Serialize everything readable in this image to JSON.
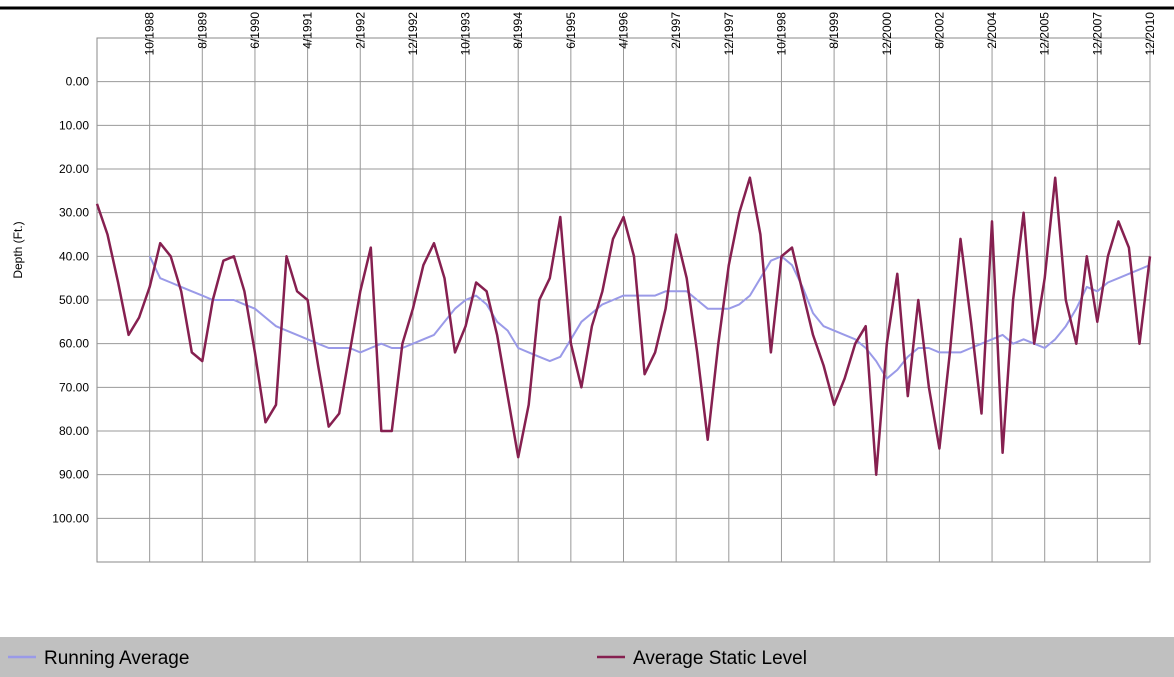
{
  "chart_data": {
    "type": "line",
    "y_label": "Depth (Ft.)",
    "categories": [
      null,
      null,
      null,
      null,
      null,
      "10/1988",
      null,
      null,
      null,
      null,
      "8/1989",
      null,
      null,
      null,
      null,
      "6/1990",
      null,
      null,
      null,
      null,
      "4/1991",
      null,
      null,
      null,
      null,
      "2/1992",
      null,
      null,
      null,
      null,
      "12/1992",
      null,
      null,
      null,
      null,
      "10/1993",
      null,
      null,
      null,
      null,
      "8/1994",
      null,
      null,
      null,
      null,
      "6/1995",
      null,
      null,
      null,
      null,
      "4/1996",
      null,
      null,
      null,
      null,
      "2/1997",
      null,
      null,
      null,
      null,
      "12/1997",
      null,
      null,
      null,
      null,
      "10/1998",
      null,
      null,
      null,
      null,
      "8/1999",
      null,
      null,
      null,
      null,
      "12/2000",
      null,
      null,
      null,
      null,
      "8/2002",
      null,
      null,
      null,
      null,
      "2/2004",
      null,
      null,
      null,
      null,
      "12/2005",
      null,
      null,
      null,
      null,
      "12/2007",
      null,
      null,
      null,
      null,
      "12/2010"
    ],
    "series": [
      {
        "name": "Running Average",
        "color": "#9a9ae8",
        "values": [
          null,
          null,
          null,
          null,
          null,
          40,
          45,
          46,
          47,
          48,
          49,
          50,
          50,
          50,
          51,
          52,
          54,
          56,
          57,
          58,
          59,
          60,
          61,
          61,
          61,
          62,
          61,
          60,
          61,
          61,
          60,
          59,
          58,
          55,
          52,
          50,
          49,
          51,
          55,
          57,
          61,
          62,
          63,
          64,
          63,
          59,
          55,
          53,
          51,
          50,
          49,
          49,
          49,
          49,
          48,
          48,
          48,
          50,
          52,
          52,
          52,
          51,
          49,
          45,
          41,
          40,
          42,
          47,
          53,
          56,
          57,
          58,
          59,
          61,
          64,
          68,
          66,
          63,
          61,
          61,
          62,
          62,
          62,
          61,
          60,
          59,
          58,
          60,
          59,
          60,
          61,
          59,
          56,
          52,
          47,
          48,
          46,
          45,
          44,
          43,
          42
        ]
      },
      {
        "name": "Average Static Level",
        "color": "#862050",
        "values": [
          28,
          35,
          46,
          58,
          54,
          47,
          37,
          40,
          48,
          62,
          64,
          50,
          41,
          40,
          48,
          62,
          78,
          74,
          40,
          48,
          50,
          65,
          79,
          76,
          62,
          48,
          38,
          80,
          80,
          60,
          52,
          42,
          37,
          45,
          62,
          56,
          46,
          48,
          58,
          72,
          86,
          74,
          50,
          45,
          31,
          60,
          70,
          56,
          48,
          36,
          31,
          40,
          67,
          62,
          52,
          35,
          45,
          62,
          82,
          60,
          42,
          30,
          22,
          35,
          62,
          40,
          38,
          48,
          58,
          65,
          74,
          68,
          60,
          56,
          90,
          60,
          44,
          72,
          50,
          70,
          84,
          62,
          36,
          55,
          76,
          32,
          85,
          50,
          30,
          60,
          45,
          22,
          50,
          60,
          40,
          55,
          40,
          32,
          38,
          60,
          40
        ]
      }
    ],
    "ylim": [
      -10,
      110
    ],
    "y_inverted": true,
    "yticks": [
      {
        "value": 0,
        "label": "0.00"
      },
      {
        "value": 10,
        "label": "10.00"
      },
      {
        "value": 20,
        "label": "20.00"
      },
      {
        "value": 30,
        "label": "30.00"
      },
      {
        "value": 40,
        "label": "40.00"
      },
      {
        "value": 50,
        "label": "50.00"
      },
      {
        "value": 60,
        "label": "60.00"
      },
      {
        "value": 70,
        "label": "70.00"
      },
      {
        "value": 80,
        "label": "80.00"
      },
      {
        "value": 90,
        "label": "90.00"
      },
      {
        "value": 100,
        "label": "100.00"
      }
    ],
    "grid": true
  }
}
